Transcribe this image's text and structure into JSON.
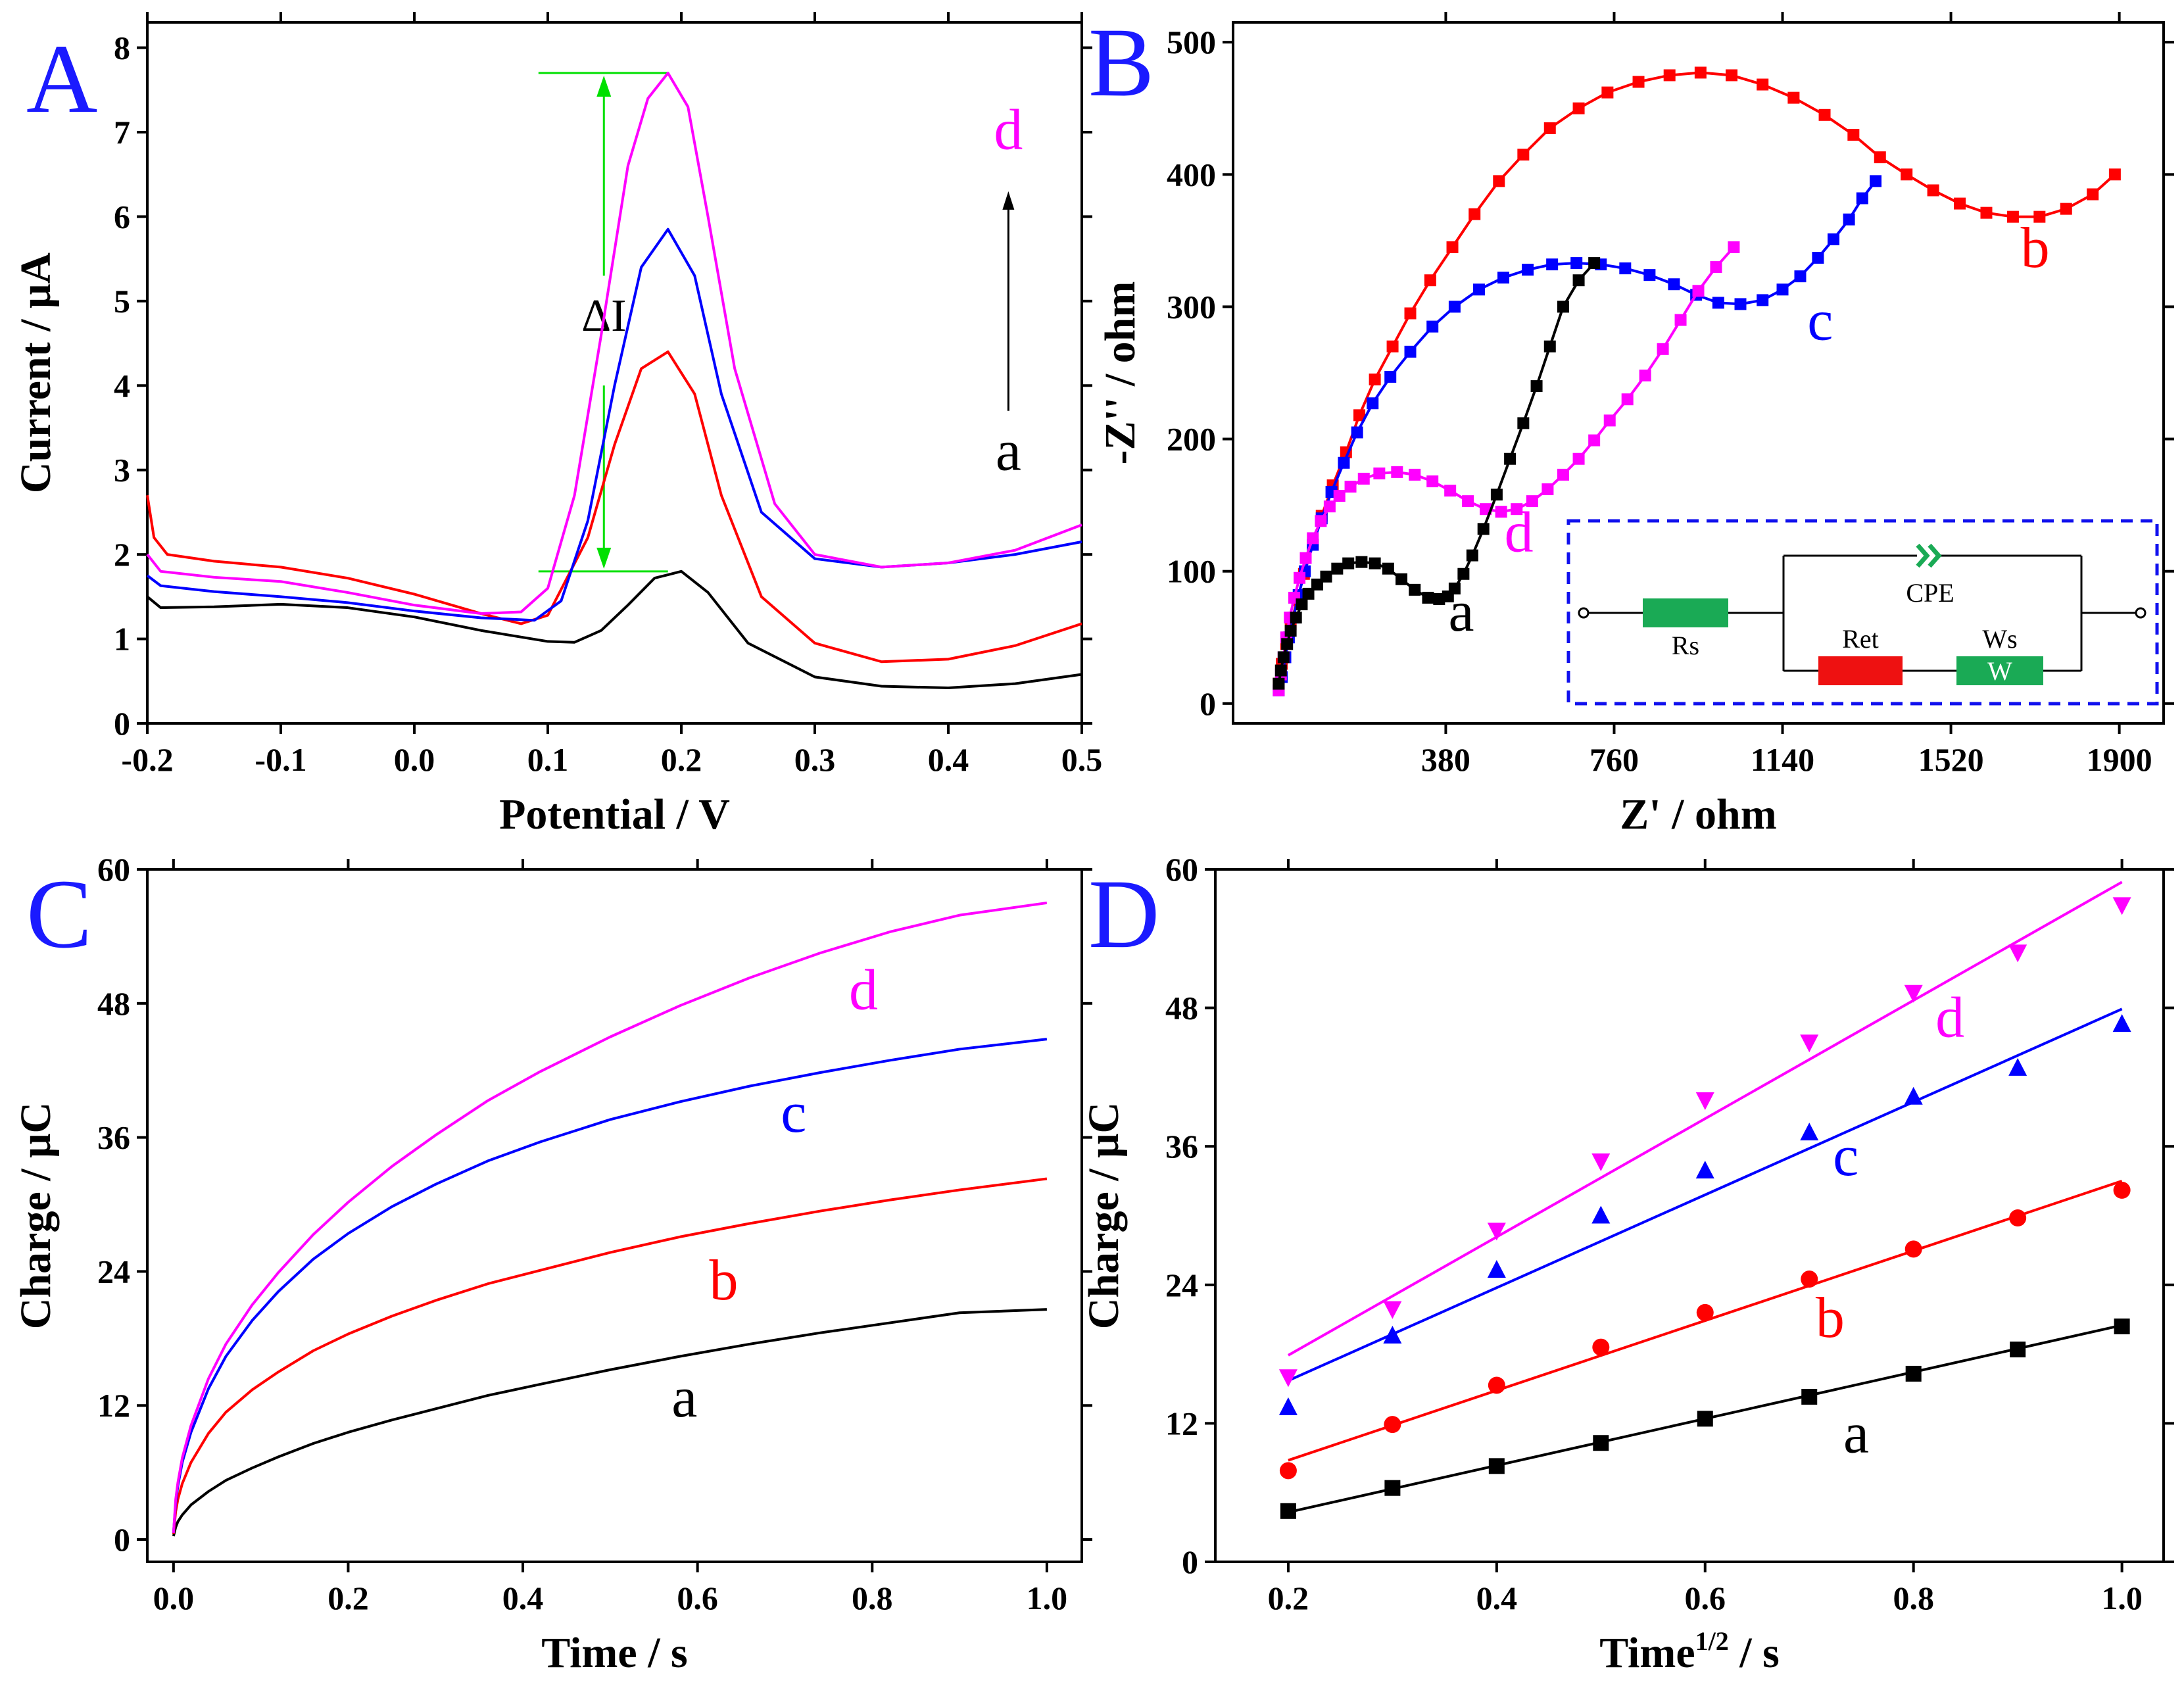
{
  "colors": {
    "a": "#000000",
    "b": "#ff0000",
    "c": "#0000ff",
    "d": "#ff00ff",
    "letters": "#1a1aff",
    "annot": "#00e000",
    "inset": "#1010ee",
    "green": "#1aaa55"
  },
  "chart_data": [
    {
      "id": "A",
      "panel": "A",
      "type": "line",
      "xlabel": "Potential / V",
      "ylabel": "Current / μA",
      "xlim": [
        -0.2,
        0.5
      ],
      "ylim": [
        0,
        8.3
      ],
      "xticks": [
        -0.2,
        -0.1,
        0.0,
        0.1,
        0.2,
        0.3,
        0.4,
        0.5
      ],
      "xticklabels": [
        "-0.2",
        "-0.1",
        "0.0",
        "0.1",
        "0.2",
        "0.3",
        "0.4",
        "0.5"
      ],
      "yticks": [
        0,
        1,
        2,
        3,
        4,
        5,
        6,
        7,
        8
      ],
      "yticklabels": [
        "0",
        "1",
        "2",
        "3",
        "4",
        "5",
        "6",
        "7",
        "8"
      ],
      "series": [
        {
          "name": "a",
          "x": [
            -0.2,
            -0.19,
            -0.15,
            -0.1,
            -0.05,
            0.0,
            0.05,
            0.1,
            0.12,
            0.14,
            0.16,
            0.18,
            0.2,
            0.22,
            0.25,
            0.3,
            0.35,
            0.4,
            0.45,
            0.5
          ],
          "y": [
            1.5,
            1.37,
            1.38,
            1.41,
            1.37,
            1.26,
            1.1,
            0.97,
            0.96,
            1.1,
            1.4,
            1.72,
            1.8,
            1.55,
            0.95,
            0.55,
            0.44,
            0.42,
            0.47,
            0.58
          ]
        },
        {
          "name": "b",
          "x": [
            -0.2,
            -0.195,
            -0.185,
            -0.15,
            -0.1,
            -0.05,
            0.0,
            0.05,
            0.08,
            0.1,
            0.13,
            0.15,
            0.17,
            0.19,
            0.21,
            0.23,
            0.26,
            0.3,
            0.35,
            0.4,
            0.45,
            0.5
          ],
          "y": [
            2.7,
            2.2,
            2.0,
            1.92,
            1.85,
            1.72,
            1.53,
            1.3,
            1.18,
            1.28,
            2.2,
            3.3,
            4.2,
            4.4,
            3.9,
            2.7,
            1.5,
            0.95,
            0.73,
            0.76,
            0.92,
            1.18
          ]
        },
        {
          "name": "c",
          "x": [
            -0.2,
            -0.19,
            -0.15,
            -0.1,
            -0.05,
            0.0,
            0.05,
            0.09,
            0.11,
            0.13,
            0.15,
            0.17,
            0.19,
            0.21,
            0.23,
            0.26,
            0.3,
            0.35,
            0.4,
            0.45,
            0.5
          ],
          "y": [
            1.75,
            1.63,
            1.56,
            1.5,
            1.43,
            1.33,
            1.25,
            1.22,
            1.45,
            2.4,
            4.0,
            5.4,
            5.85,
            5.3,
            3.9,
            2.5,
            1.95,
            1.85,
            1.9,
            2.0,
            2.15
          ]
        },
        {
          "name": "d",
          "x": [
            -0.2,
            -0.19,
            -0.15,
            -0.1,
            -0.05,
            0.0,
            0.05,
            0.08,
            0.1,
            0.12,
            0.14,
            0.16,
            0.175,
            0.19,
            0.205,
            0.22,
            0.24,
            0.27,
            0.3,
            0.35,
            0.4,
            0.45,
            0.5
          ],
          "y": [
            2.0,
            1.8,
            1.73,
            1.68,
            1.55,
            1.4,
            1.3,
            1.32,
            1.6,
            2.7,
            4.6,
            6.6,
            7.4,
            7.7,
            7.3,
            6.0,
            4.2,
            2.6,
            2.0,
            1.85,
            1.9,
            2.05,
            2.35
          ]
        }
      ],
      "labels": [
        {
          "text": "d",
          "x": 0.445,
          "y": 6.8
        },
        {
          "text": "a",
          "x": 0.445,
          "y": 3.0
        }
      ],
      "annotation": {
        "text": "ΔI",
        "x": 0.05,
        "y": 4.65,
        "bracket_x": 0.142,
        "y_top": 7.7,
        "y_bottom": 1.8,
        "line_x_start": 0.093,
        "line_x_end": 0.19,
        "arrow_x": 0.445,
        "arrow_y_start": 3.7,
        "arrow_y_end": 6.3
      }
    },
    {
      "id": "B",
      "panel": "B",
      "type": "scatter-line",
      "xlabel": "Z' / ohm",
      "ylabel": "-Z'' / ohm",
      "xlim": [
        -100,
        2000
      ],
      "ylim": [
        -15,
        515
      ],
      "xticks": [
        380,
        760,
        1140,
        1520,
        1900
      ],
      "xticklabels": [
        "380",
        "760",
        "1140",
        "1520",
        "1900"
      ],
      "yticks": [
        0,
        100,
        200,
        300,
        400,
        500
      ],
      "yticklabels": [
        "0",
        "100",
        "200",
        "300",
        "400",
        "500"
      ],
      "series": [
        {
          "name": "a",
          "x": [
            3,
            8,
            14,
            22,
            30,
            42,
            55,
            70,
            90,
            110,
            135,
            160,
            190,
            220,
            250,
            280,
            310,
            340,
            365,
            385,
            400,
            420,
            440,
            465,
            495,
            525,
            555,
            585,
            615,
            645,
            680,
            715
          ],
          "y": [
            15,
            25,
            35,
            45,
            55,
            65,
            75,
            83,
            90,
            96,
            102,
            106,
            107,
            106,
            102,
            94,
            86,
            80,
            79,
            81,
            87,
            98,
            112,
            132,
            158,
            185,
            212,
            240,
            270,
            300,
            320,
            333
          ]
        },
        {
          "name": "b",
          "x": [
            3,
            10,
            20,
            30,
            45,
            60,
            80,
            100,
            125,
            155,
            185,
            220,
            260,
            300,
            345,
            395,
            445,
            500,
            555,
            615,
            680,
            745,
            815,
            885,
            955,
            1025,
            1095,
            1165,
            1235,
            1300,
            1360,
            1420,
            1480,
            1540,
            1600,
            1660,
            1720,
            1780,
            1840,
            1890
          ],
          "y": [
            15,
            30,
            45,
            60,
            78,
            98,
            120,
            142,
            165,
            190,
            218,
            245,
            270,
            295,
            320,
            345,
            370,
            395,
            415,
            435,
            450,
            462,
            470,
            475,
            477,
            475,
            468,
            458,
            445,
            430,
            413,
            400,
            388,
            378,
            371,
            368,
            368,
            374,
            385,
            400
          ]
        },
        {
          "name": "c",
          "x": [
            3,
            10,
            18,
            26,
            36,
            48,
            62,
            80,
            100,
            122,
            150,
            180,
            215,
            255,
            300,
            350,
            400,
            455,
            510,
            565,
            620,
            675,
            730,
            785,
            840,
            895,
            945,
            995,
            1045,
            1095,
            1140,
            1180,
            1220,
            1255,
            1290,
            1320,
            1350
          ],
          "y": [
            10,
            20,
            35,
            50,
            65,
            82,
            100,
            120,
            140,
            160,
            182,
            205,
            227,
            247,
            266,
            285,
            300,
            313,
            322,
            328,
            332,
            333,
            332,
            329,
            324,
            317,
            309,
            303,
            302,
            305,
            313,
            323,
            337,
            351,
            366,
            382,
            395
          ]
        },
        {
          "name": "d",
          "x": [
            3,
            8,
            14,
            20,
            28,
            38,
            50,
            64,
            80,
            98,
            118,
            140,
            165,
            195,
            230,
            270,
            310,
            350,
            390,
            430,
            470,
            505,
            540,
            575,
            610,
            645,
            680,
            715,
            750,
            790,
            830,
            870,
            910,
            950,
            990,
            1030
          ],
          "y": [
            10,
            22,
            35,
            50,
            65,
            80,
            95,
            110,
            125,
            138,
            149,
            157,
            164,
            170,
            174,
            175,
            173,
            168,
            161,
            153,
            147,
            145,
            147,
            153,
            162,
            173,
            185,
            199,
            214,
            230,
            248,
            268,
            290,
            312,
            330,
            345
          ]
        }
      ],
      "labels": [
        {
          "text": "b",
          "x": 1710,
          "y": 330
        },
        {
          "text": "c",
          "x": 1225,
          "y": 275
        },
        {
          "text": "d",
          "x": 545,
          "y": 115
        },
        {
          "text": "a",
          "x": 415,
          "y": 55
        }
      ],
      "inset": {
        "rs": "Rs",
        "cpe": "CPE",
        "ret": "Ret",
        "ws": "Ws",
        "w": "W"
      }
    },
    {
      "id": "C",
      "panel": "C",
      "type": "line",
      "xlabel": "Time / s",
      "ylabel": "Charge / μC",
      "xlim": [
        -0.03,
        1.04
      ],
      "ylim": [
        -2,
        60
      ],
      "xticks": [
        0.0,
        0.2,
        0.4,
        0.6,
        0.8,
        1.0
      ],
      "xticklabels": [
        "0.0",
        "0.2",
        "0.4",
        "0.6",
        "0.8",
        "1.0"
      ],
      "yticks": [
        0,
        12,
        24,
        36,
        48,
        60
      ],
      "yticklabels": [
        "0",
        "12",
        "24",
        "36",
        "48",
        "60"
      ],
      "series": [
        {
          "name": "a",
          "x": [
            0,
            0.0025,
            0.005,
            0.01,
            0.02,
            0.04,
            0.06,
            0.09,
            0.12,
            0.16,
            0.2,
            0.25,
            0.3,
            0.36,
            0.42,
            0.5,
            0.58,
            0.66,
            0.74,
            0.82,
            0.9,
            1.0
          ],
          "y": [
            0.3,
            1.1,
            1.6,
            2.2,
            3.1,
            4.3,
            5.3,
            6.4,
            7.4,
            8.6,
            9.6,
            10.7,
            11.7,
            12.9,
            13.9,
            15.2,
            16.4,
            17.5,
            18.5,
            19.4,
            20.3,
            20.6
          ]
        },
        {
          "name": "b",
          "x": [
            0,
            0.0025,
            0.005,
            0.01,
            0.02,
            0.04,
            0.06,
            0.09,
            0.12,
            0.16,
            0.2,
            0.25,
            0.3,
            0.36,
            0.42,
            0.5,
            0.58,
            0.66,
            0.74,
            0.82,
            0.9,
            1.0
          ],
          "y": [
            0.5,
            2.5,
            3.6,
            5.0,
            6.9,
            9.5,
            11.4,
            13.4,
            15.0,
            16.9,
            18.4,
            20.0,
            21.4,
            22.9,
            24.1,
            25.7,
            27.1,
            28.3,
            29.4,
            30.4,
            31.3,
            32.3
          ]
        },
        {
          "name": "c",
          "x": [
            0,
            0.0025,
            0.005,
            0.01,
            0.02,
            0.04,
            0.06,
            0.09,
            0.12,
            0.16,
            0.2,
            0.25,
            0.3,
            0.36,
            0.42,
            0.5,
            0.58,
            0.66,
            0.74,
            0.82,
            0.9,
            1.0
          ],
          "y": [
            0.6,
            3.3,
            4.8,
            6.9,
            9.6,
            13.5,
            16.4,
            19.6,
            22.2,
            25.1,
            27.4,
            29.8,
            31.8,
            33.9,
            35.6,
            37.6,
            39.2,
            40.6,
            41.8,
            42.9,
            43.9,
            44.8
          ]
        },
        {
          "name": "d",
          "x": [
            0,
            0.0025,
            0.005,
            0.01,
            0.02,
            0.04,
            0.06,
            0.09,
            0.12,
            0.16,
            0.2,
            0.25,
            0.3,
            0.36,
            0.42,
            0.5,
            0.58,
            0.66,
            0.74,
            0.82,
            0.9,
            1.0
          ],
          "y": [
            0.6,
            3.6,
            5.1,
            7.3,
            10.2,
            14.4,
            17.5,
            21.0,
            23.9,
            27.3,
            30.2,
            33.4,
            36.2,
            39.3,
            41.9,
            45.0,
            47.8,
            50.3,
            52.5,
            54.4,
            55.9,
            57.0
          ]
        }
      ],
      "labels": [
        {
          "text": "d",
          "x": 0.79,
          "y": 47.5
        },
        {
          "text": "c",
          "x": 0.71,
          "y": 36.5
        },
        {
          "text": "b",
          "x": 0.63,
          "y": 21.5
        },
        {
          "text": "a",
          "x": 0.585,
          "y": 11.0
        }
      ]
    },
    {
      "id": "D",
      "panel": "D",
      "type": "scatter",
      "xlabel": "Time",
      "xlabel_sup": "1/2",
      "xlabel_tail": " / s",
      "ylabel": "Charge / μC",
      "xlim": [
        0.13,
        1.04
      ],
      "ylim": [
        0,
        60
      ],
      "xticks": [
        0.2,
        0.4,
        0.6,
        0.8,
        1.0
      ],
      "xticklabels": [
        "0.2",
        "0.4",
        "0.6",
        "0.8",
        "1.0"
      ],
      "yticks": [
        0,
        12,
        24,
        36,
        48,
        60
      ],
      "yticklabels": [
        "0",
        "12",
        "24",
        "36",
        "48",
        "60"
      ],
      "series": [
        {
          "name": "a",
          "marker": "square",
          "x": [
            0.2,
            0.3,
            0.4,
            0.5,
            0.6,
            0.7,
            0.8,
            0.9,
            1.0
          ],
          "y": [
            4.4,
            6.4,
            8.3,
            10.3,
            12.4,
            14.3,
            16.3,
            18.4,
            20.4
          ],
          "fit": [
            4.3,
            20.5
          ]
        },
        {
          "name": "b",
          "marker": "circle",
          "x": [
            0.2,
            0.3,
            0.4,
            0.5,
            0.6,
            0.7,
            0.8,
            0.9,
            1.0
          ],
          "y": [
            7.9,
            11.9,
            15.3,
            18.6,
            21.6,
            24.5,
            27.1,
            29.8,
            32.2
          ],
          "fit": [
            8.8,
            33.0
          ]
        },
        {
          "name": "c",
          "marker": "triangle-up",
          "x": [
            0.2,
            0.3,
            0.4,
            0.5,
            0.6,
            0.7,
            0.8,
            0.9,
            1.0
          ],
          "y": [
            13.4,
            19.6,
            25.3,
            30.0,
            33.9,
            37.2,
            40.3,
            42.8,
            46.6
          ],
          "fit": [
            15.7,
            47.9
          ]
        },
        {
          "name": "d",
          "marker": "triangle-down",
          "x": [
            0.2,
            0.3,
            0.4,
            0.5,
            0.6,
            0.7,
            0.8,
            0.9,
            1.0
          ],
          "y": [
            16.0,
            21.9,
            28.7,
            34.7,
            40.0,
            45.0,
            49.3,
            52.8,
            56.9
          ],
          "fit": [
            17.9,
            58.9
          ]
        }
      ],
      "labels": [
        {
          "text": "d",
          "x": 0.835,
          "y": 45.5
        },
        {
          "text": "c",
          "x": 0.735,
          "y": 33.5
        },
        {
          "text": "b",
          "x": 0.72,
          "y": 19.5
        },
        {
          "text": "a",
          "x": 0.745,
          "y": 9.5
        }
      ]
    }
  ]
}
